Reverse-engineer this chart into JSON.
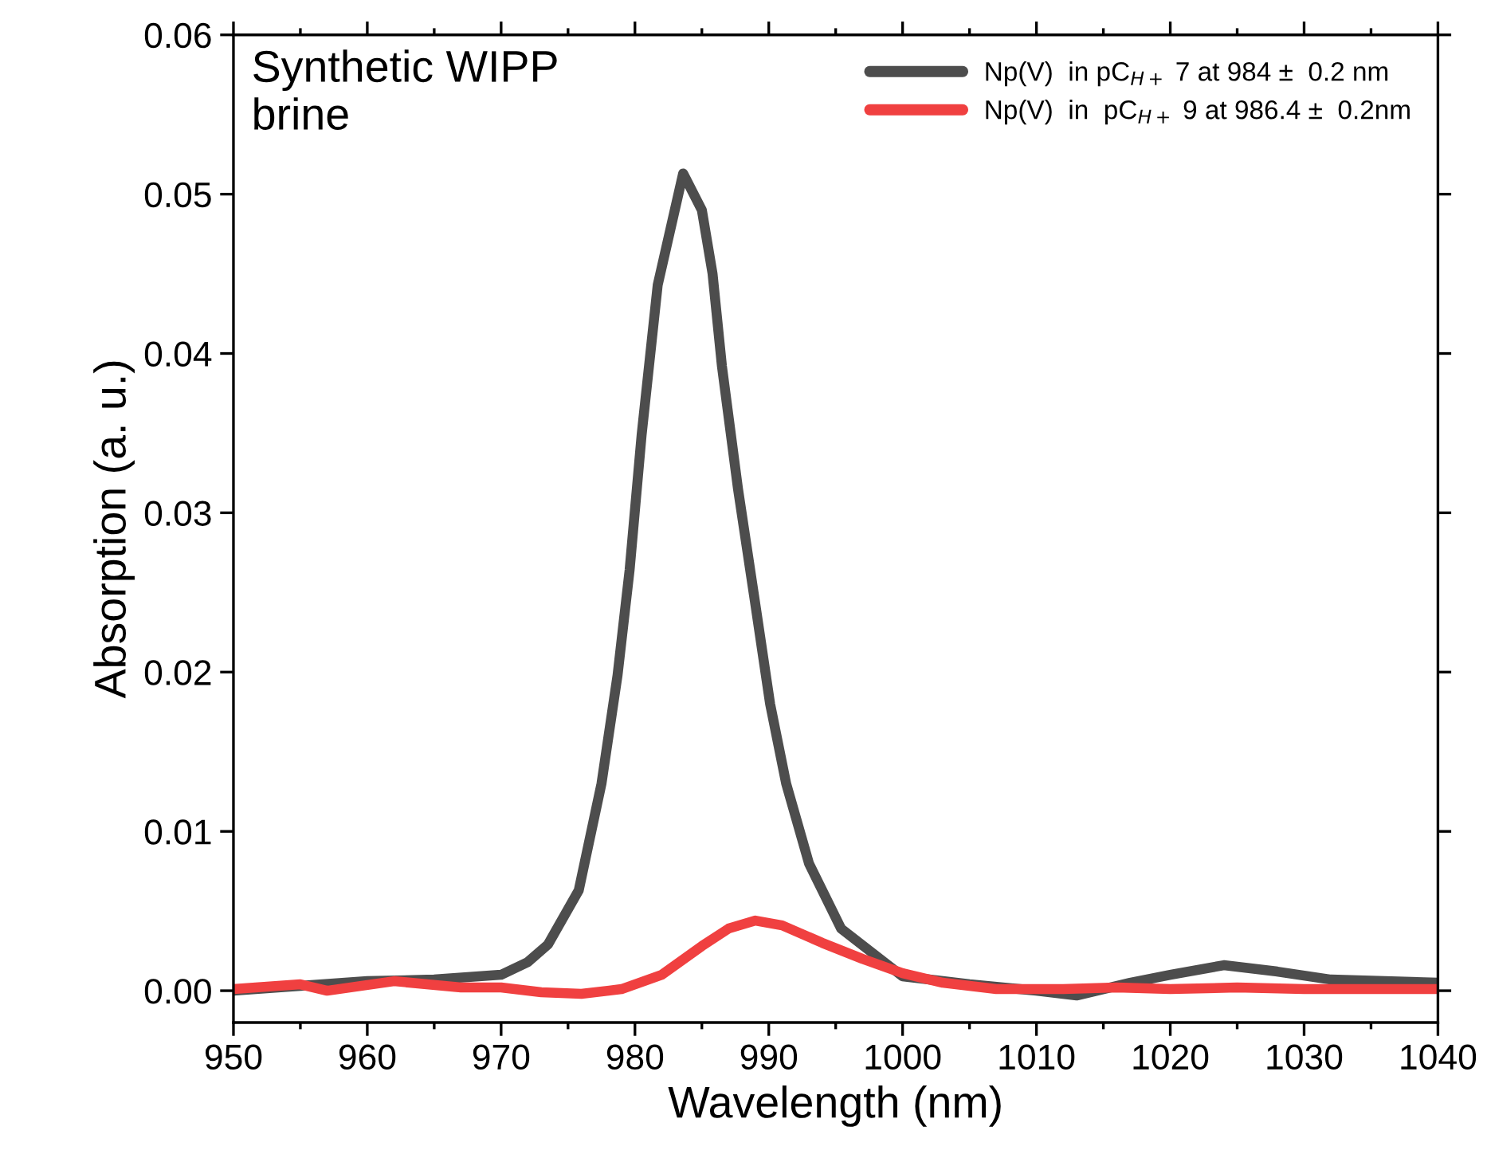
{
  "chart_data": {
    "type": "line",
    "xlabel": "Wavelength (nm)",
    "ylabel": "Absorption (a. u.)",
    "annotations": [
      "Synthetic WIPP\nbrine"
    ],
    "xlim": [
      950,
      1040
    ],
    "xticks": [
      950,
      960,
      970,
      980,
      990,
      1000,
      1010,
      1020,
      1030,
      1040
    ],
    "ylim": [
      -0.002,
      0.06
    ],
    "yticks": [
      {
        "value": 0,
        "label": "0.00"
      },
      {
        "value": 0.01,
        "label": "0.01"
      },
      {
        "value": 0.02,
        "label": "0.02"
      },
      {
        "value": 0.03,
        "label": "0.03"
      },
      {
        "value": 0.04,
        "label": "0.04"
      },
      {
        "value": 0.05,
        "label": "0.05"
      },
      {
        "value": 0.06,
        "label": "0.06"
      }
    ],
    "legend": "top right",
    "grid": false,
    "marker": "none",
    "line_style": "solid",
    "series": [
      {
        "name": "Np(V)  in pC$_{H+}$ 7 at 984 ±  0.2 nm",
        "color": "#4d4d4d",
        "x": [
          950,
          955,
          960,
          965,
          970,
          972,
          973.5,
          975.8,
          977.5,
          978.7,
          979.6,
          980.5,
          981.7,
          983.6,
          985,
          985.8,
          986.5,
          987.7,
          988.9,
          990.1,
          991.3,
          993,
          995.4,
          1000,
          1005,
          1010,
          1013,
          1017,
          1020,
          1024,
          1028,
          1032,
          1036,
          1040
        ],
        "values": [
          0,
          0.0003,
          0.0006,
          0.0007,
          0.001,
          0.0018,
          0.0029,
          0.0063,
          0.013,
          0.0198,
          0.0264,
          0.0349,
          0.0443,
          0.0513,
          0.049,
          0.045,
          0.0392,
          0.0315,
          0.0248,
          0.018,
          0.013,
          0.008,
          0.0039,
          0.0009,
          0.0004,
          0,
          -0.0003,
          0.0005,
          0.001,
          0.0016,
          0.0012,
          0.0007,
          0.0006,
          0.0005
        ]
      },
      {
        "name": "Np(V)  in  pC$_{H+}$ 9 at 986.4 ±  0.2nm",
        "color": "#f04040",
        "x": [
          950,
          955,
          957,
          962,
          967,
          970,
          973,
          976,
          979,
          982,
          985,
          987,
          989,
          991,
          994,
          997,
          1000,
          1003,
          1007,
          1012,
          1016,
          1020,
          1025,
          1030,
          1035,
          1040
        ],
        "values": [
          0.0001,
          0.0004,
          0,
          0.0006,
          0.0002,
          0.0002,
          -0.0001,
          -0.0002,
          0.0001,
          0.001,
          0.0028,
          0.0039,
          0.0044,
          0.0041,
          0.003,
          0.002,
          0.0011,
          0.0005,
          0.0001,
          0.0001,
          0.0002,
          0.0001,
          0.0002,
          0.0001,
          0.0001,
          0.0001
        ]
      }
    ]
  }
}
